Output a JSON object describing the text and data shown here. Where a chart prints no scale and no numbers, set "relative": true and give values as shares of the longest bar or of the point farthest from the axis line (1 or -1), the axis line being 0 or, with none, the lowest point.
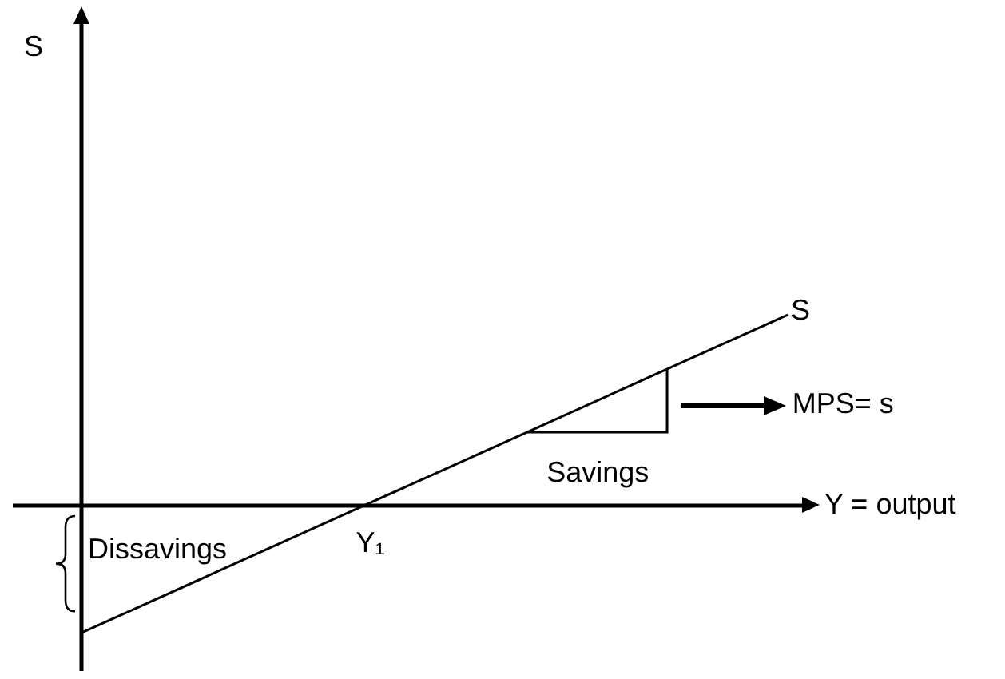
{
  "chart_data": {
    "type": "line",
    "relative": true,
    "categories": [
      null,
      null,
      null,
      null,
      null,
      null
    ],
    "series": [
      {
        "name": "S",
        "color": "#000000",
        "values": [
          -0.667,
          -0.333,
          0,
          0.333,
          0.667,
          1
        ]
      }
    ],
    "xlabel": "Y = output",
    "annotations": [
      "Dissavings",
      "Savings",
      "MPS= s",
      "Y₁",
      "S"
    ],
    "legend": false,
    "grid": false,
    "marker": "none",
    "line_style": "solid"
  }
}
